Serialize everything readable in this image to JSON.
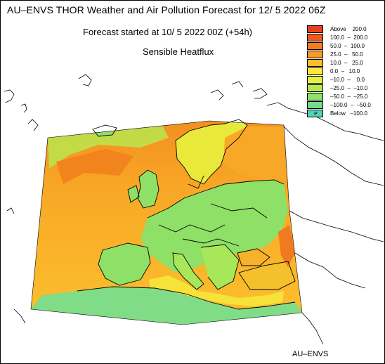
{
  "header": {
    "title": "AU–ENVS THOR Weather and Air Pollution Forecast for 12/ 5 2022  06Z",
    "subtitle": "Forecast started at 10/ 5 2022  00Z (+54h)",
    "field": "Sensible Heatflux"
  },
  "legend": {
    "items": [
      {
        "label": "Above    200.0",
        "color": "#e8401c"
      },
      {
        "label": "100.0  –  200.0",
        "color": "#ef5a1e"
      },
      {
        "label": "50.0  –  100.0",
        "color": "#f47b20"
      },
      {
        "label": "25.0  –   50.0",
        "color": "#f99b25"
      },
      {
        "label": "10.0  –   25.0",
        "color": "#fcbe2d"
      },
      {
        "label": "0.0  –   10.0",
        "color": "#ffe93b"
      },
      {
        "label": "–10.0  –    0.0",
        "color": "#e4f23f"
      },
      {
        "label": "–25.0  –  –10.0",
        "color": "#b5ea4b"
      },
      {
        "label": "–50.0  –  –25.0",
        "color": "#8fe366"
      },
      {
        "label": "–100.0  –  –50.0",
        "color": "#72dc8c"
      },
      {
        "label": "Below   –100.0",
        "color": "#52d2b8",
        "swatch_text": "P"
      }
    ]
  },
  "map": {
    "ocean_color": "#f9a424",
    "north_atlantic_color": "#f5931d",
    "land_color": "#8fe066",
    "southeast_color": "#f5b92a",
    "coast_color": "#000000"
  },
  "footer": {
    "credit": "AU–ENVS"
  }
}
